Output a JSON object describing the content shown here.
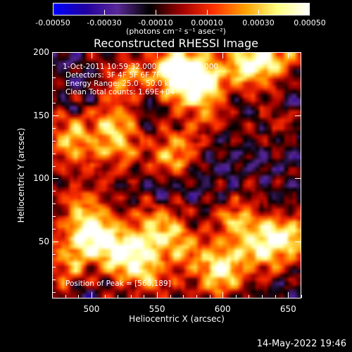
{
  "chart_data": {
    "type": "heatmap",
    "title": "Reconstructed RHESSI Image",
    "xlabel": "Heliocentric X (arcsec)",
    "ylabel": "Heliocentric Y (arcsec)",
    "xlim": [
      470,
      660
    ],
    "ylim": [
      5,
      200
    ],
    "xticks": [
      500,
      550,
      600,
      650
    ],
    "yticks": [
      50,
      100,
      150,
      200
    ],
    "colorbar": {
      "min": -0.0005,
      "max": 0.0005,
      "ticks": [
        "-0.00050",
        "-0.00030",
        "-0.00010",
        "0.00010",
        "0.00030",
        "0.00050"
      ],
      "units": "(photons cm⁻² s⁻¹ asec⁻²)",
      "colors": [
        "#0000ff",
        "#2000a0",
        "#5a2898",
        "#000000",
        "#a00000",
        "#ff3000",
        "#ffa000",
        "#ffff80",
        "#ffffff"
      ]
    },
    "annotations": {
      "time": "1-Oct-2011 10:59:32.000 to 11:04:20.000",
      "detectors": "Detectors: 3F 4F 5F 6F 7F 8F, Att 0",
      "energy": "Energy Range: 25.0 - 50.0 keV",
      "clean": "Clean    Total counts: 1.69E+04",
      "peak": "Position of Peak = [560,189]"
    },
    "peak": [
      560,
      189
    ],
    "emission_regions": [
      {
        "x": 565,
        "y": 185,
        "strength": 1.0
      },
      {
        "x": 585,
        "y": 178,
        "strength": 0.8
      },
      {
        "x": 620,
        "y": 192,
        "strength": 0.7
      },
      {
        "x": 640,
        "y": 198,
        "strength": 0.6
      },
      {
        "x": 525,
        "y": 180,
        "strength": 0.5
      },
      {
        "x": 515,
        "y": 140,
        "strength": 0.7
      },
      {
        "x": 480,
        "y": 130,
        "strength": 0.6
      },
      {
        "x": 565,
        "y": 120,
        "strength": 0.6
      },
      {
        "x": 520,
        "y": 115,
        "strength": 0.4
      },
      {
        "x": 585,
        "y": 150,
        "strength": 0.4
      },
      {
        "x": 640,
        "y": 145,
        "strength": 0.3
      },
      {
        "x": 500,
        "y": 55,
        "strength": 0.9
      },
      {
        "x": 525,
        "y": 40,
        "strength": 0.8
      },
      {
        "x": 550,
        "y": 60,
        "strength": 0.6
      },
      {
        "x": 570,
        "y": 45,
        "strength": 0.5
      },
      {
        "x": 600,
        "y": 25,
        "strength": 0.8
      },
      {
        "x": 625,
        "y": 45,
        "strength": 0.6
      },
      {
        "x": 650,
        "y": 50,
        "strength": 0.8
      },
      {
        "x": 480,
        "y": 30,
        "strength": 0.5
      },
      {
        "x": 540,
        "y": 20,
        "strength": 0.5
      },
      {
        "x": 610,
        "y": 70,
        "strength": 0.5
      },
      {
        "x": 490,
        "y": 80,
        "strength": 0.4
      }
    ],
    "background_level": -0.3
  },
  "timestamp": "14-May-2022 19:46"
}
